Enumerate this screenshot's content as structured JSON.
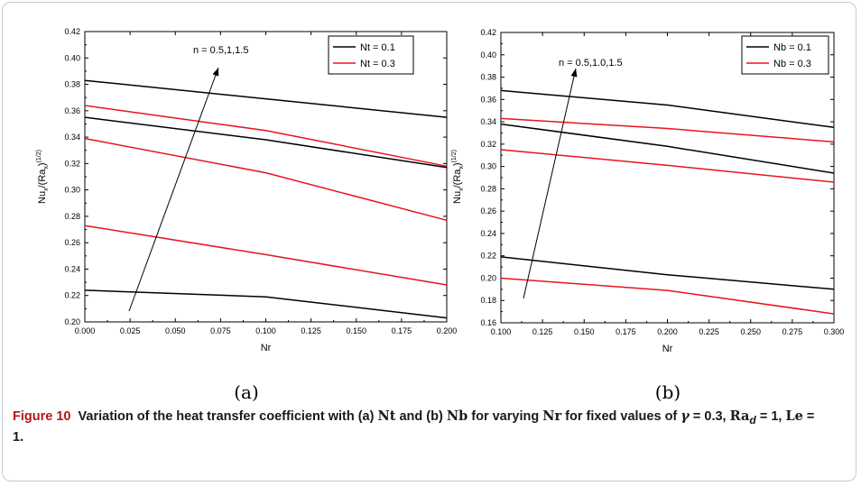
{
  "chart_data": [
    {
      "type": "line",
      "panel_label": "(a)",
      "xlabel": "Nr",
      "ylabel": "Nu_x/(Ra_x)^(1/2)",
      "xlim": [
        0.0,
        0.2
      ],
      "ylim": [
        0.2,
        0.42
      ],
      "xticks": [
        "0.000",
        "0.025",
        "0.050",
        "0.075",
        "0.100",
        "0.125",
        "0.150",
        "0.175",
        "0.200"
      ],
      "yticks": [
        "0.20",
        "0.22",
        "0.24",
        "0.26",
        "0.28",
        "0.30",
        "0.32",
        "0.34",
        "0.36",
        "0.38",
        "0.40",
        "0.42"
      ],
      "annotation": "n = 0.5,1,1.5",
      "legend_position": "top-right",
      "legend": [
        {
          "name": "Nt = 0.1",
          "color": "#000000"
        },
        {
          "name": "Nt = 0.3",
          "color": "#e8141b"
        }
      ],
      "series": [
        {
          "legend": "Nt = 0.1",
          "color": "#000000",
          "x": [
            0.0,
            0.1,
            0.2
          ],
          "y": [
            0.383,
            0.369,
            0.355
          ]
        },
        {
          "legend": "Nt = 0.3",
          "color": "#e8141b",
          "x": [
            0.0,
            0.1,
            0.2
          ],
          "y": [
            0.364,
            0.345,
            0.318
          ]
        },
        {
          "legend": "Nt = 0.1",
          "color": "#000000",
          "x": [
            0.0,
            0.1,
            0.2
          ],
          "y": [
            0.355,
            0.338,
            0.317
          ]
        },
        {
          "legend": "Nt = 0.3",
          "color": "#e8141b",
          "x": [
            0.0,
            0.1,
            0.2
          ],
          "y": [
            0.339,
            0.313,
            0.277
          ]
        },
        {
          "legend": "Nt = 0.3",
          "color": "#e8141b",
          "x": [
            0.0,
            0.1,
            0.2
          ],
          "y": [
            0.273,
            0.251,
            0.228
          ]
        },
        {
          "legend": "Nt = 0.1",
          "color": "#000000",
          "x": [
            0.0,
            0.1,
            0.2
          ],
          "y": [
            0.224,
            0.219,
            0.203
          ]
        }
      ]
    },
    {
      "type": "line",
      "panel_label": "(b)",
      "xlabel": "Nr",
      "ylabel": "Nu_x/(Ra_x)^(1/2)",
      "xlim": [
        0.1,
        0.3
      ],
      "ylim": [
        0.16,
        0.42
      ],
      "xticks": [
        "0.100",
        "0.125",
        "0.150",
        "0.175",
        "0.200",
        "0.225",
        "0.250",
        "0.275",
        "0.300"
      ],
      "yticks": [
        "0.16",
        "0.18",
        "0.20",
        "0.22",
        "0.24",
        "0.26",
        "0.28",
        "0.30",
        "0.32",
        "0.34",
        "0.36",
        "0.38",
        "0.40",
        "0.42"
      ],
      "annotation": "n = 0.5,1.0,1.5",
      "legend_position": "top-right",
      "legend": [
        {
          "name": "Nb = 0.1",
          "color": "#000000"
        },
        {
          "name": "Nb = 0.3",
          "color": "#e8141b"
        }
      ],
      "series": [
        {
          "legend": "Nb = 0.1",
          "color": "#000000",
          "x": [
            0.1,
            0.2,
            0.3
          ],
          "y": [
            0.368,
            0.355,
            0.335
          ]
        },
        {
          "legend": "Nb = 0.3",
          "color": "#e8141b",
          "x": [
            0.1,
            0.2,
            0.3
          ],
          "y": [
            0.343,
            0.334,
            0.322
          ]
        },
        {
          "legend": "Nb = 0.1",
          "color": "#000000",
          "x": [
            0.1,
            0.2,
            0.3
          ],
          "y": [
            0.338,
            0.318,
            0.294
          ]
        },
        {
          "legend": "Nb = 0.3",
          "color": "#e8141b",
          "x": [
            0.1,
            0.2,
            0.3
          ],
          "y": [
            0.315,
            0.301,
            0.286
          ]
        },
        {
          "legend": "Nb = 0.1",
          "color": "#000000",
          "x": [
            0.1,
            0.2,
            0.3
          ],
          "y": [
            0.219,
            0.203,
            0.19
          ]
        },
        {
          "legend": "Nb = 0.3",
          "color": "#e8141b",
          "x": [
            0.1,
            0.2,
            0.3
          ],
          "y": [
            0.2,
            0.189,
            0.168
          ]
        }
      ]
    }
  ],
  "caption": {
    "label": "Figure 10",
    "text_part1": "Variation of the heat transfer coefficient with (a)",
    "nt": "Nt",
    "text_part2": "and (b)",
    "nb": "Nb",
    "text_part3": "for varying",
    "nr": "Nr",
    "text_part4": "for fixed values of",
    "gamma": "γ",
    "gamma_value": "= 0.3,",
    "ra": "Ra",
    "ra_sub": "d",
    "ra_value": "= 1,",
    "le": "Le",
    "le_value": "= 1."
  }
}
